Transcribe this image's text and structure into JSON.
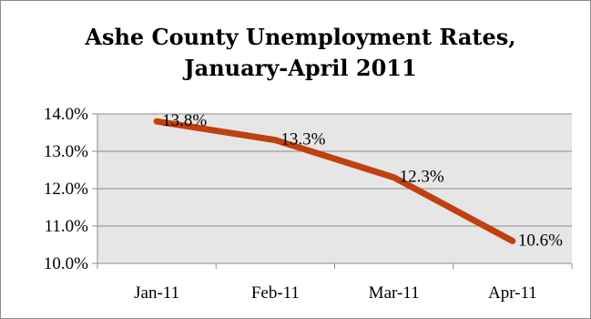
{
  "chart_data": {
    "type": "line",
    "title_lines": [
      "Ashe County Unemployment Rates,",
      "January-April 2011"
    ],
    "categories": [
      "Jan-11",
      "Feb-11",
      "Mar-11",
      "Apr-11"
    ],
    "values": [
      13.8,
      13.3,
      12.3,
      10.6
    ],
    "data_labels": [
      "13.8%",
      "13.3%",
      "12.3%",
      "10.6%"
    ],
    "ylim": [
      10,
      14
    ],
    "yticks": [
      14,
      13,
      12,
      11,
      10
    ],
    "ytick_labels": [
      "14.0%",
      "13.0%",
      "12.0%",
      "11.0%",
      "10.0%"
    ],
    "xlabel": "",
    "ylabel": "",
    "grid": true,
    "legend": "none",
    "colors": {
      "line": "#c0400f",
      "plot_bg": "#e6e6e6",
      "grid": "#8c8c8c"
    }
  }
}
